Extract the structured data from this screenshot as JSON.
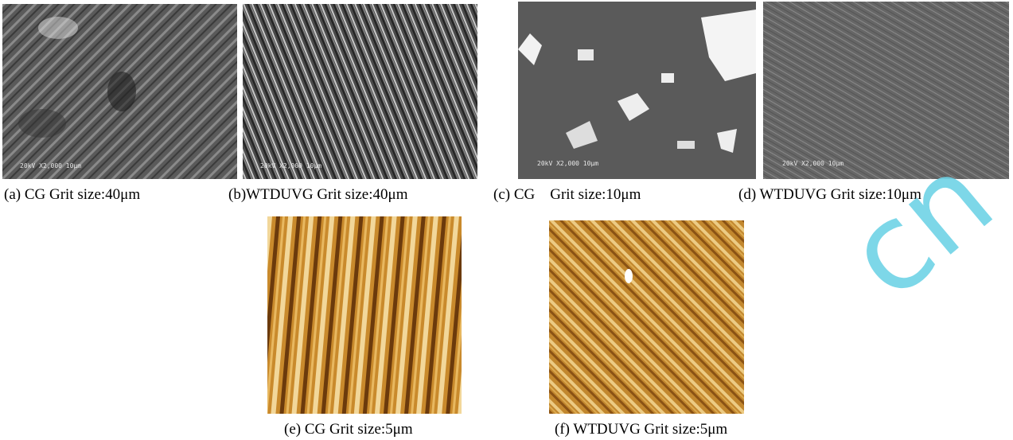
{
  "panels": [
    {
      "caption": "(a) CG Grit size:40μm",
      "micrograph_label": "20kV  X2,000  10μm"
    },
    {
      "caption": "(b)WTDUVG Grit size:40μm",
      "micrograph_label": "20kV  X2,000  10μm"
    },
    {
      "caption": "(c) CG    Grit size:10μm",
      "micrograph_label": "20kV  X2,000  10μm"
    },
    {
      "caption": "(d) WTDUVG Grit size:10μm",
      "micrograph_label": "20kV  X2,000  10μm"
    },
    {
      "caption": "(e) CG Grit size:5μm"
    },
    {
      "caption": "(f) WTDUVG Grit size:5μm"
    }
  ],
  "watermark": "cn"
}
